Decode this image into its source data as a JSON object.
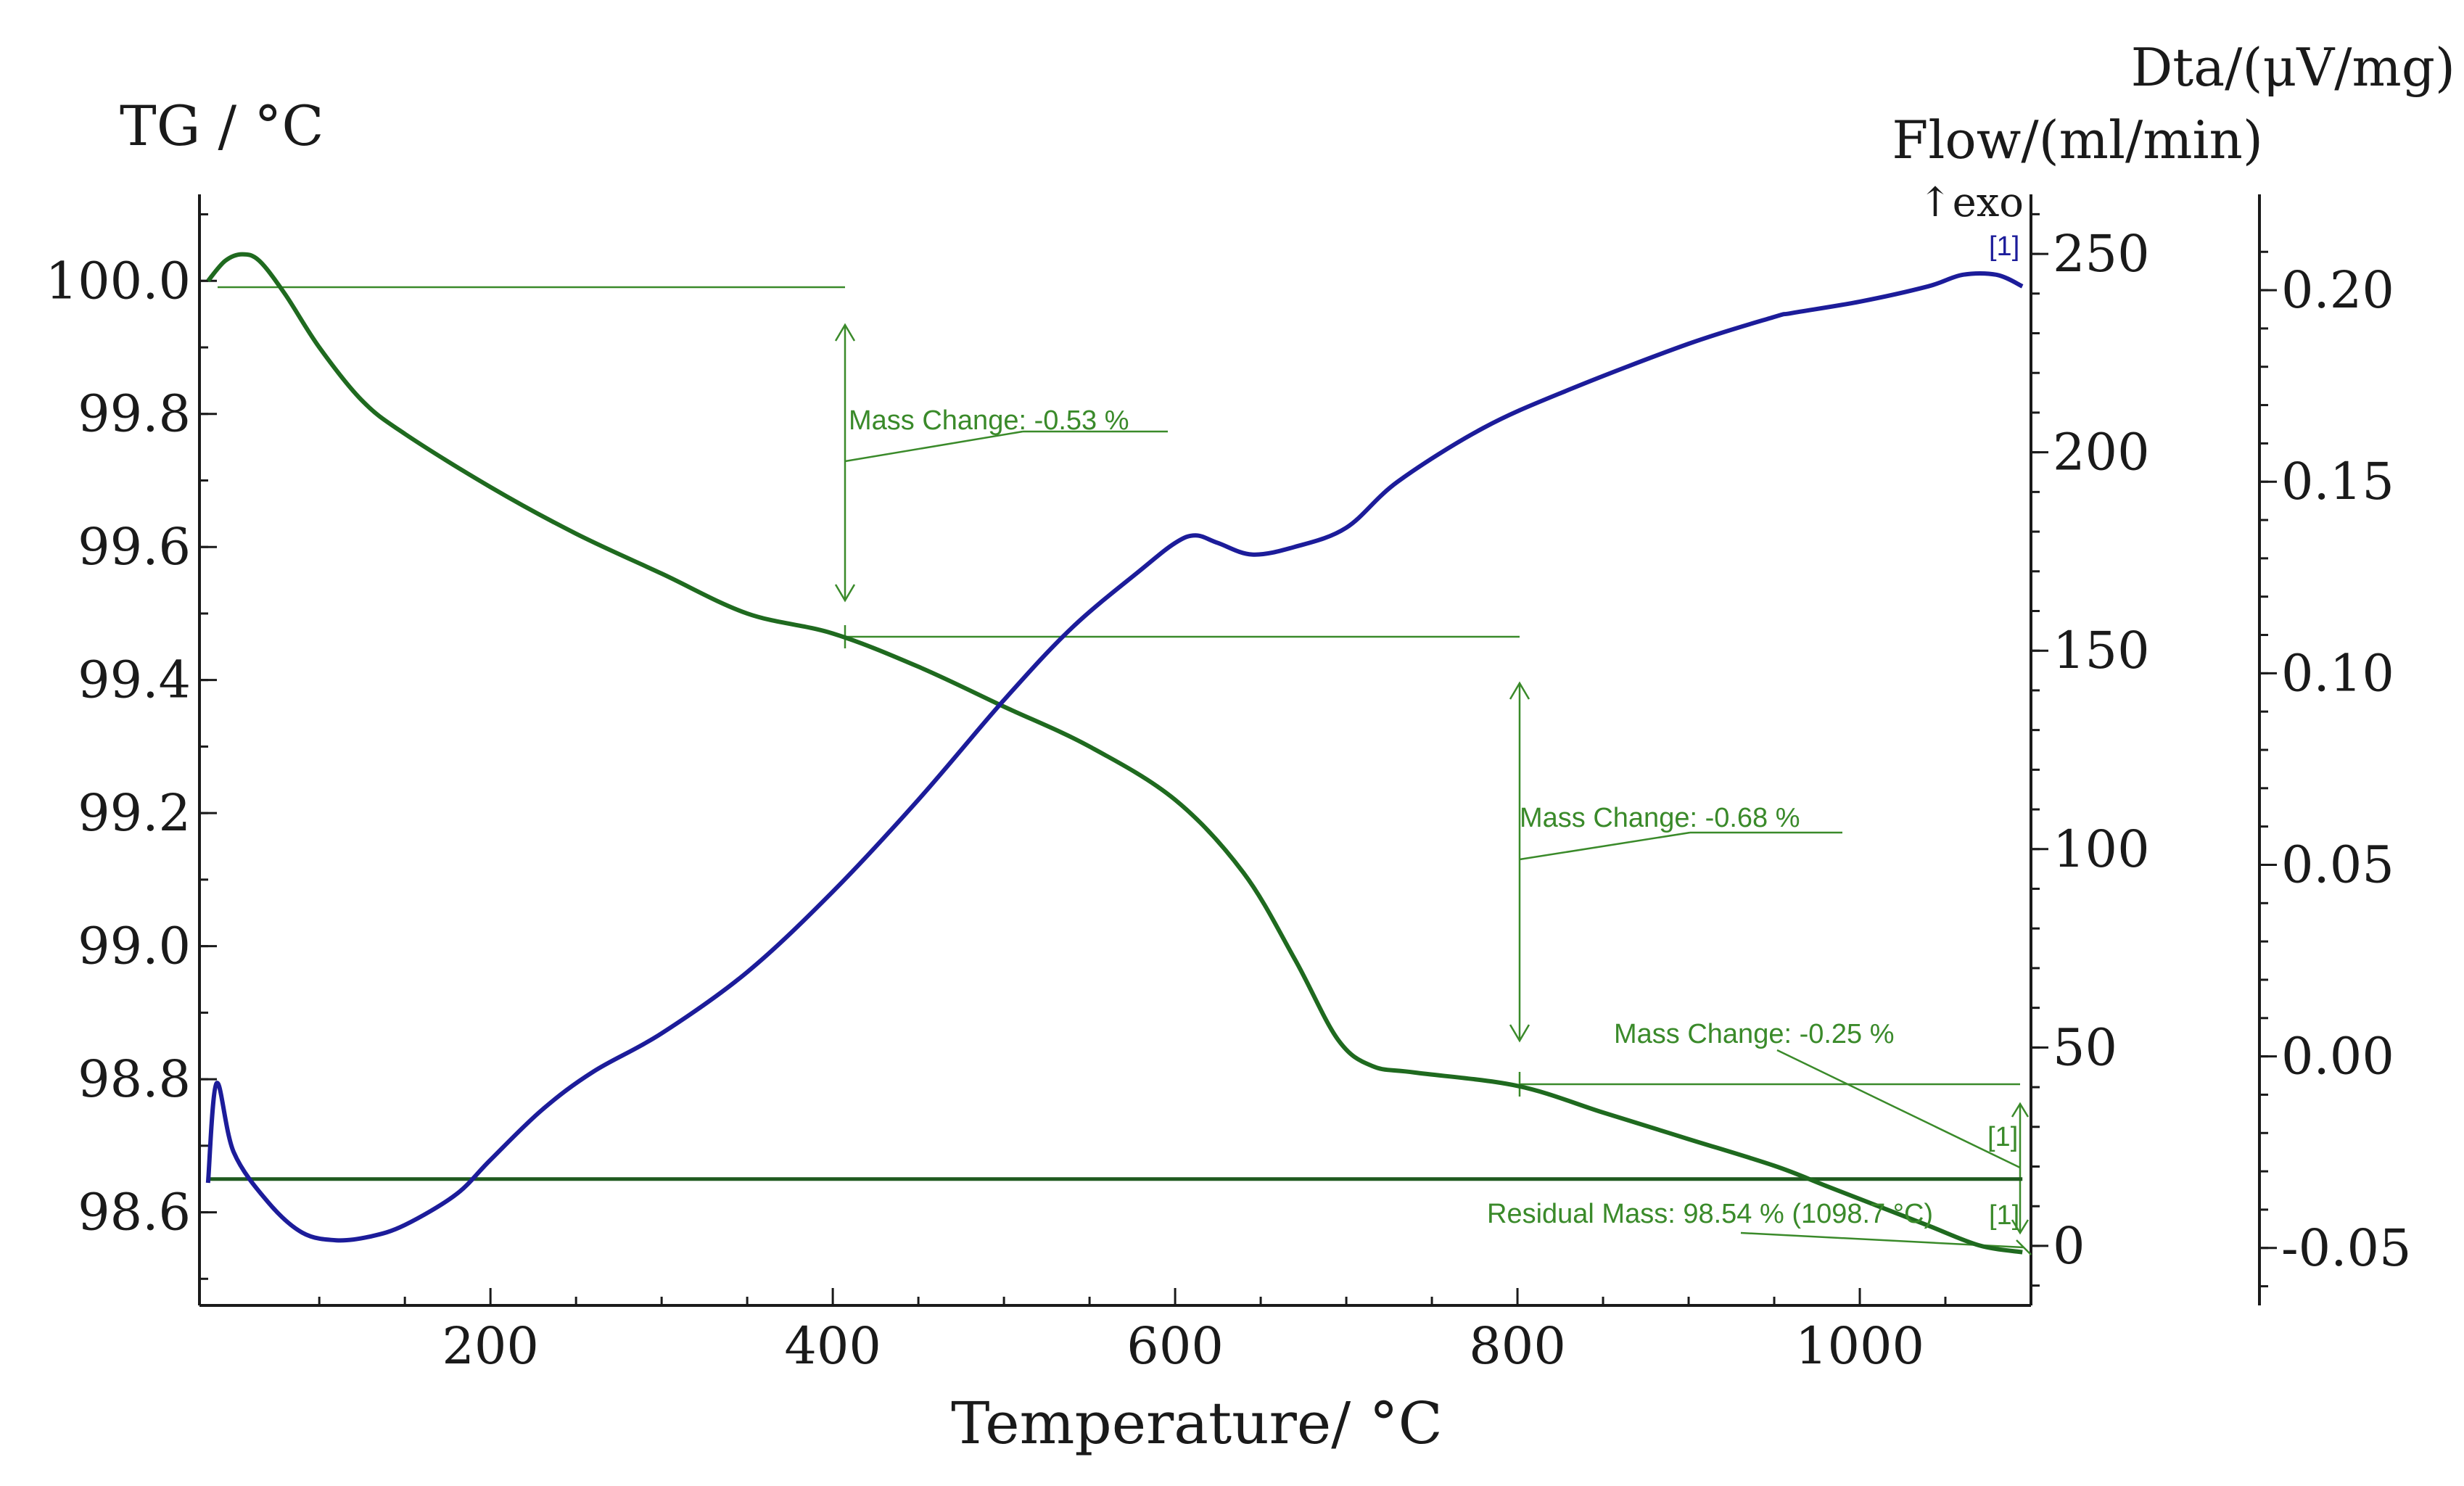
{
  "chart_data": {
    "type": "line",
    "xlabel": "Temperature/ °C",
    "x_ticks": [
      "200",
      "400",
      "600",
      "800",
      "1000"
    ],
    "xlim": [
      30,
      1100
    ],
    "left_axis": {
      "label": "TG / °C",
      "ylim": [
        98.46,
        100.13
      ],
      "ticks": [
        "100.0",
        "99.8",
        "99.6",
        "99.4",
        "99.2",
        "99.0",
        "98.8",
        "98.6"
      ]
    },
    "middle_axis": {
      "label": "Flow/(ml/min)",
      "ylim": [
        -15,
        265
      ],
      "ticks": [
        "250",
        "200",
        "150",
        "100",
        "50",
        "0"
      ]
    },
    "right_axis": {
      "label": "Dta/(μV/mg)",
      "ylim": [
        -0.065,
        0.225
      ],
      "ticks": [
        "0.20",
        "0.15",
        "0.10",
        "0.05",
        "0.00",
        "-0.05"
      ]
    },
    "exo_label": "↑exo",
    "series": [
      {
        "name": "TG",
        "color": "#1f6a1f",
        "x": [
          35,
          45,
          55,
          65,
          80,
          100,
          125,
          150,
          200,
          250,
          300,
          350,
          400,
          450,
          500,
          550,
          600,
          640,
          670,
          695,
          715,
          740,
          800,
          850,
          900,
          950,
          980,
          1010,
          1040,
          1070,
          1095
        ],
        "y": [
          100.0,
          100.03,
          100.04,
          100.03,
          99.98,
          99.9,
          99.82,
          99.77,
          99.69,
          99.62,
          99.56,
          99.5,
          99.47,
          99.42,
          99.36,
          99.3,
          99.22,
          99.11,
          98.98,
          98.86,
          98.82,
          98.81,
          98.79,
          98.75,
          98.71,
          98.67,
          98.64,
          98.61,
          98.58,
          98.55,
          98.54
        ]
      },
      {
        "name": "DTA",
        "color": "#1c1c9a",
        "x": [
          35,
          40,
          50,
          70,
          90,
          110,
          130,
          150,
          180,
          200,
          230,
          260,
          300,
          350,
          400,
          450,
          500,
          540,
          580,
          600,
          612,
          625,
          645,
          670,
          700,
          730,
          780,
          830,
          900,
          950,
          960,
          1000,
          1040,
          1060,
          1080,
          1095
        ],
        "y": [
          -0.033,
          -0.007,
          -0.025,
          -0.038,
          -0.046,
          -0.048,
          -0.047,
          -0.044,
          -0.036,
          -0.027,
          -0.014,
          -0.004,
          0.006,
          0.022,
          0.043,
          0.067,
          0.093,
          0.112,
          0.127,
          0.134,
          0.136,
          0.134,
          0.131,
          0.133,
          0.138,
          0.15,
          0.164,
          0.174,
          0.186,
          0.193,
          0.194,
          0.197,
          0.201,
          0.204,
          0.204,
          0.201
        ]
      }
    ],
    "annotations": [
      {
        "text": "Mass Change: -0.53 %",
        "x_range": [
          30,
          400
        ],
        "tg_range": [
          100.0,
          99.47
        ]
      },
      {
        "text": "Mass Change: -0.68 %",
        "x_range": [
          400,
          800
        ],
        "tg_range": [
          99.47,
          98.79
        ]
      },
      {
        "text": "Mass Change: -0.25 %",
        "x_range": [
          800,
          1095
        ],
        "tg_range": [
          98.79,
          98.54
        ]
      },
      {
        "text": "Residual Mass: 98.54 % (1098.7 °C)",
        "x": 1098.7,
        "tg": 98.54
      }
    ],
    "marker_labels": [
      "[1]",
      "[1]",
      "[1]"
    ],
    "residual_line_tg": 98.65
  }
}
